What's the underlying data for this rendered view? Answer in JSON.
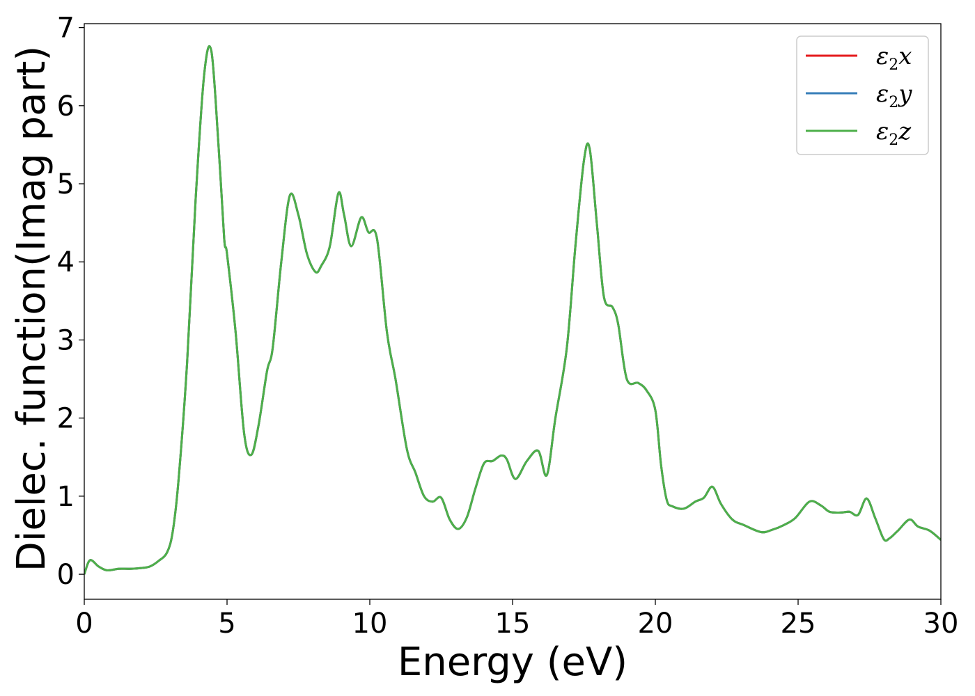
{
  "chart_data": {
    "type": "line",
    "title": "",
    "xlabel": "Energy (eV)",
    "ylabel": "Dielec. function(Imag part)",
    "xlim": [
      0,
      30
    ],
    "ylim": [
      -0.32,
      7.05
    ],
    "xticks": [
      0,
      5,
      10,
      15,
      20,
      25,
      30
    ],
    "xtick_labels": [
      "0",
      "5",
      "10",
      "15",
      "20",
      "25",
      "30"
    ],
    "yticks": [
      0,
      1,
      2,
      3,
      4,
      5,
      6,
      7
    ],
    "ytick_labels": [
      "0",
      "1",
      "2",
      "3",
      "4",
      "5",
      "6",
      "7"
    ],
    "grid": false,
    "legend": "top-right",
    "x": [
      0,
      0.2,
      0.5,
      0.8,
      1.2,
      1.6,
      2.0,
      2.3,
      2.6,
      2.9,
      3.1,
      3.3,
      3.6,
      3.9,
      4.2,
      4.45,
      4.7,
      4.9,
      5.0,
      5.3,
      5.6,
      5.85,
      6.1,
      6.4,
      6.6,
      6.9,
      7.2,
      7.5,
      7.8,
      8.1,
      8.3,
      8.6,
      8.9,
      9.1,
      9.35,
      9.7,
      9.95,
      10.25,
      10.6,
      10.9,
      11.3,
      11.6,
      11.9,
      12.2,
      12.5,
      12.8,
      13.1,
      13.4,
      13.7,
      14.0,
      14.3,
      14.6,
      14.8,
      15.1,
      15.5,
      15.9,
      16.2,
      16.5,
      16.9,
      17.2,
      17.5,
      17.7,
      17.95,
      18.2,
      18.5,
      18.7,
      19.0,
      19.4,
      19.7,
      20.0,
      20.2,
      20.4,
      20.6,
      21.0,
      21.4,
      21.7,
      22.0,
      22.3,
      22.7,
      23.1,
      23.7,
      24.1,
      24.5,
      24.9,
      25.4,
      25.8,
      26.1,
      26.5,
      26.8,
      27.1,
      27.4,
      27.7,
      28.0,
      28.2,
      28.5,
      28.9,
      29.2,
      29.6,
      30.0
    ],
    "series": [
      {
        "name": "ε₂x",
        "label_base": "ε",
        "label_sub": "2",
        "label_var": "x",
        "color": "#e41a1c",
        "values": [
          0.0,
          0.18,
          0.1,
          0.05,
          0.07,
          0.07,
          0.08,
          0.1,
          0.17,
          0.28,
          0.55,
          1.2,
          2.7,
          4.8,
          6.4,
          6.7,
          5.5,
          4.3,
          4.1,
          3.1,
          1.8,
          1.53,
          1.9,
          2.6,
          2.9,
          4.0,
          4.85,
          4.6,
          4.1,
          3.87,
          3.95,
          4.2,
          4.88,
          4.6,
          4.2,
          4.57,
          4.38,
          4.3,
          3.1,
          2.5,
          1.6,
          1.3,
          1.0,
          0.93,
          0.98,
          0.7,
          0.58,
          0.73,
          1.1,
          1.42,
          1.45,
          1.52,
          1.47,
          1.22,
          1.45,
          1.58,
          1.27,
          2.0,
          2.9,
          4.2,
          5.3,
          5.45,
          4.5,
          3.55,
          3.42,
          3.2,
          2.5,
          2.45,
          2.35,
          2.1,
          1.4,
          0.95,
          0.87,
          0.84,
          0.93,
          0.98,
          1.12,
          0.9,
          0.7,
          0.63,
          0.54,
          0.57,
          0.63,
          0.72,
          0.93,
          0.88,
          0.8,
          0.79,
          0.8,
          0.76,
          0.97,
          0.72,
          0.45,
          0.46,
          0.56,
          0.7,
          0.61,
          0.56,
          0.44
        ]
      },
      {
        "name": "ε₂y",
        "label_base": "ε",
        "label_sub": "2",
        "label_var": "y",
        "color": "#377eb8",
        "values": [
          0.0,
          0.18,
          0.1,
          0.05,
          0.07,
          0.07,
          0.08,
          0.1,
          0.17,
          0.28,
          0.55,
          1.2,
          2.7,
          4.8,
          6.4,
          6.7,
          5.5,
          4.3,
          4.1,
          3.1,
          1.8,
          1.53,
          1.9,
          2.6,
          2.9,
          4.0,
          4.85,
          4.6,
          4.1,
          3.87,
          3.95,
          4.2,
          4.88,
          4.6,
          4.2,
          4.57,
          4.38,
          4.3,
          3.1,
          2.5,
          1.6,
          1.3,
          1.0,
          0.93,
          0.98,
          0.7,
          0.58,
          0.73,
          1.1,
          1.42,
          1.45,
          1.52,
          1.47,
          1.22,
          1.45,
          1.58,
          1.27,
          2.0,
          2.9,
          4.2,
          5.3,
          5.45,
          4.5,
          3.55,
          3.42,
          3.2,
          2.5,
          2.45,
          2.35,
          2.1,
          1.4,
          0.95,
          0.87,
          0.84,
          0.93,
          0.98,
          1.12,
          0.9,
          0.7,
          0.63,
          0.54,
          0.57,
          0.63,
          0.72,
          0.93,
          0.88,
          0.8,
          0.79,
          0.8,
          0.76,
          0.97,
          0.72,
          0.45,
          0.46,
          0.56,
          0.7,
          0.61,
          0.56,
          0.44
        ]
      },
      {
        "name": "ε₂z",
        "label_base": "ε",
        "label_sub": "2",
        "label_var": "z",
        "color": "#4daf4a",
        "values": [
          0.0,
          0.18,
          0.1,
          0.05,
          0.07,
          0.07,
          0.08,
          0.1,
          0.17,
          0.28,
          0.55,
          1.2,
          2.7,
          4.8,
          6.4,
          6.7,
          5.5,
          4.3,
          4.1,
          3.1,
          1.8,
          1.53,
          1.9,
          2.6,
          2.9,
          4.0,
          4.85,
          4.6,
          4.1,
          3.87,
          3.95,
          4.2,
          4.88,
          4.6,
          4.2,
          4.57,
          4.38,
          4.3,
          3.1,
          2.5,
          1.6,
          1.3,
          1.0,
          0.93,
          0.98,
          0.7,
          0.58,
          0.73,
          1.1,
          1.42,
          1.45,
          1.52,
          1.47,
          1.22,
          1.45,
          1.58,
          1.27,
          2.0,
          2.9,
          4.2,
          5.3,
          5.45,
          4.5,
          3.55,
          3.42,
          3.2,
          2.5,
          2.45,
          2.35,
          2.1,
          1.4,
          0.95,
          0.87,
          0.84,
          0.93,
          0.98,
          1.12,
          0.9,
          0.7,
          0.63,
          0.54,
          0.57,
          0.63,
          0.72,
          0.93,
          0.88,
          0.8,
          0.79,
          0.8,
          0.76,
          0.97,
          0.72,
          0.45,
          0.46,
          0.56,
          0.7,
          0.61,
          0.56,
          0.44
        ]
      }
    ]
  }
}
